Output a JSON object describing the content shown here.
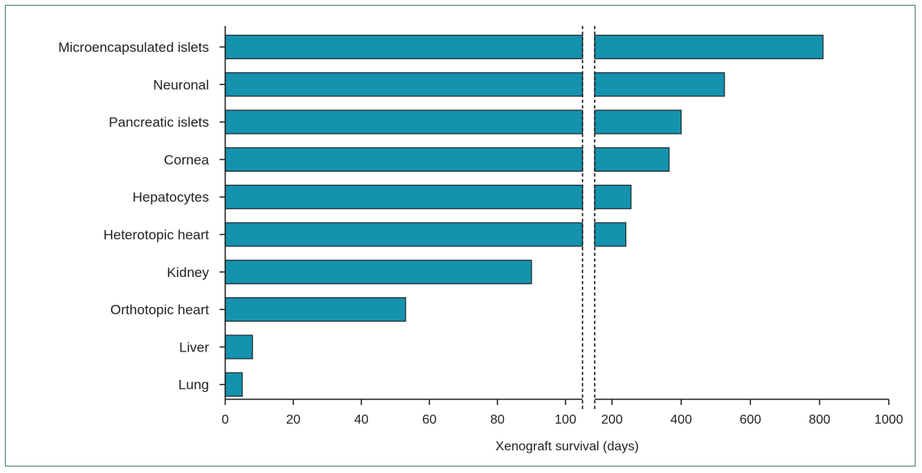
{
  "chart_data": {
    "type": "bar",
    "orientation": "horizontal",
    "title": "",
    "xlabel": "Xenograft survival (days)",
    "ylabel": "",
    "bar_color": "#1592ad",
    "broken_axis": true,
    "segments": [
      {
        "range": [
          0,
          105
        ],
        "ticks": [
          0,
          20,
          40,
          60,
          80,
          100
        ]
      },
      {
        "range": [
          150,
          1000
        ],
        "ticks": [
          200,
          400,
          600,
          800,
          1000
        ]
      }
    ],
    "categories": [
      "Microencapsulated islets",
      "Neuronal",
      "Pancreatic islets",
      "Cornea",
      "Hepatocytes",
      "Heterotopic heart",
      "Kidney",
      "Orthotopic heart",
      "Liver",
      "Lung"
    ],
    "values": [
      810,
      525,
      400,
      365,
      255,
      240,
      90,
      53,
      8,
      5
    ]
  }
}
